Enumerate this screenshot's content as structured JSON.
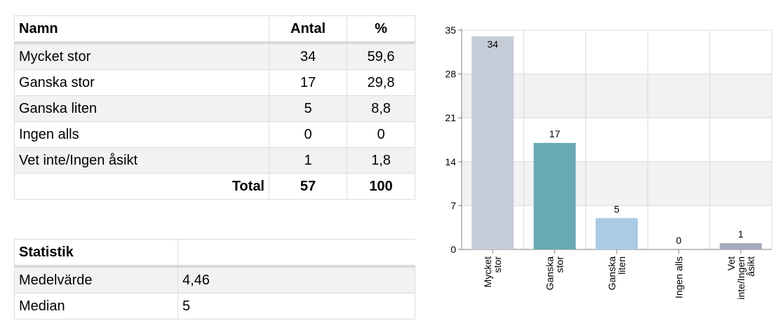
{
  "freq_table": {
    "headers": {
      "name": "Namn",
      "count": "Antal",
      "percent": "%"
    },
    "rows": [
      {
        "name": "Mycket stor",
        "count": "34",
        "percent": "59,6"
      },
      {
        "name": "Ganska stor",
        "count": "17",
        "percent": "29,8"
      },
      {
        "name": "Ganska liten",
        "count": "5",
        "percent": "8,8"
      },
      {
        "name": "Ingen alls",
        "count": "0",
        "percent": "0"
      },
      {
        "name": "Vet inte/Ingen åsikt",
        "count": "1",
        "percent": "1,8"
      }
    ],
    "total": {
      "label": "Total",
      "count": "57",
      "percent": "100"
    }
  },
  "stats_table": {
    "title": "Statistik",
    "rows": [
      {
        "label": "Medelvärde",
        "value": "4,46"
      },
      {
        "label": "Median",
        "value": "5"
      }
    ]
  },
  "chart_data": {
    "type": "bar",
    "categories": [
      [
        "Mycket",
        "stor"
      ],
      [
        "Ganska",
        "stor"
      ],
      [
        "Ganska",
        "liten"
      ],
      [
        "Ingen alls"
      ],
      [
        "Vet",
        "inte/Ingen",
        "åsikt"
      ]
    ],
    "values": [
      34,
      17,
      5,
      0,
      1
    ],
    "data_labels": [
      "34",
      "17",
      "5",
      "0",
      "1"
    ],
    "colors": [
      "#c5ccd8",
      "#69a9b4",
      "#a9cbe6",
      "#c5ccd8",
      "#a3aabb"
    ],
    "yticks": [
      "0",
      "7",
      "14",
      "21",
      "28",
      "35"
    ],
    "ylim": [
      0,
      35
    ],
    "grid": true
  }
}
